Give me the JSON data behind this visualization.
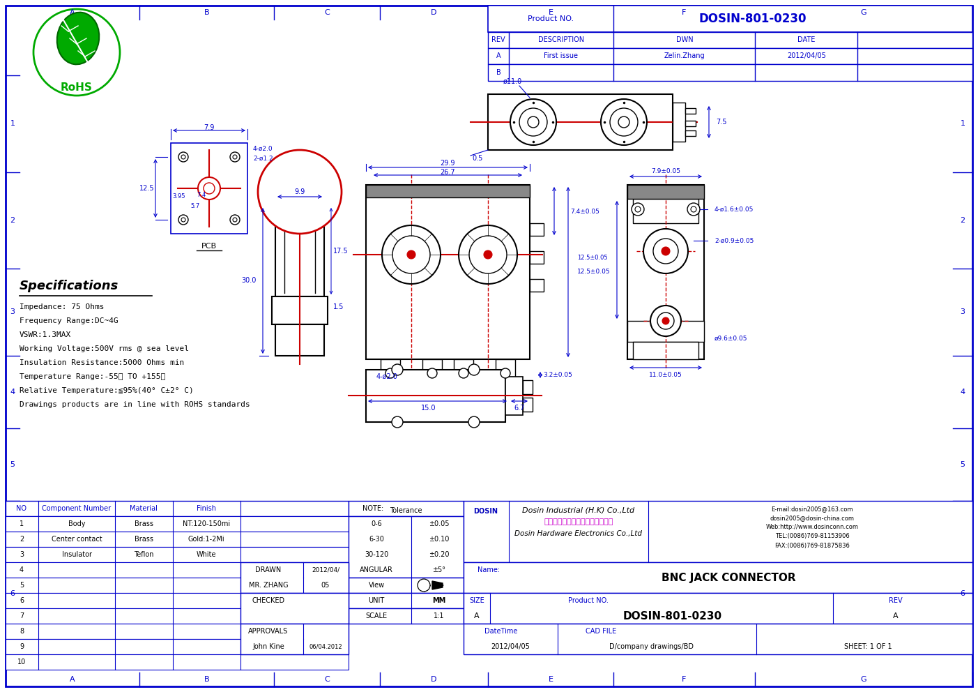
{
  "title": "BNC JACK CONNECTOR",
  "product_no": "DOSIN-801-0230",
  "company_en": "Dosin Industrial (H.K) Co.,Ltd",
  "company_cn": "东莞市德赛五金电子制品有限公司",
  "company_alt": "Dosin Hardware Electronics Co.,Ltd",
  "email1": "E-mail:dosin2005@163.com",
  "email2": "dosin2005@dosin-china.com",
  "web": "Web:http://www.dosinconn.com",
  "tel": "TEL:(0086)769-81153906",
  "fax": "FAX:(0086)769-81875836",
  "bg_color": "#ffffff",
  "border_color": "#0000cd",
  "line_color": "#000080",
  "draw_color": "#000000",
  "red_color": "#cc0000",
  "specs": [
    "Impedance: 75 Ohms",
    "Frequency Range:DC~4G",
    "VSWR:1.3MAX",
    "Working Voltage:500V rms @ sea level",
    "Insulation Resistance:5000 Ohms min",
    "Temperature Range:-55℃ TO +155℃",
    "Relative Temperature:≦95%(40° C±2° C)",
    "Drawings products are in line with ROHS standards"
  ]
}
